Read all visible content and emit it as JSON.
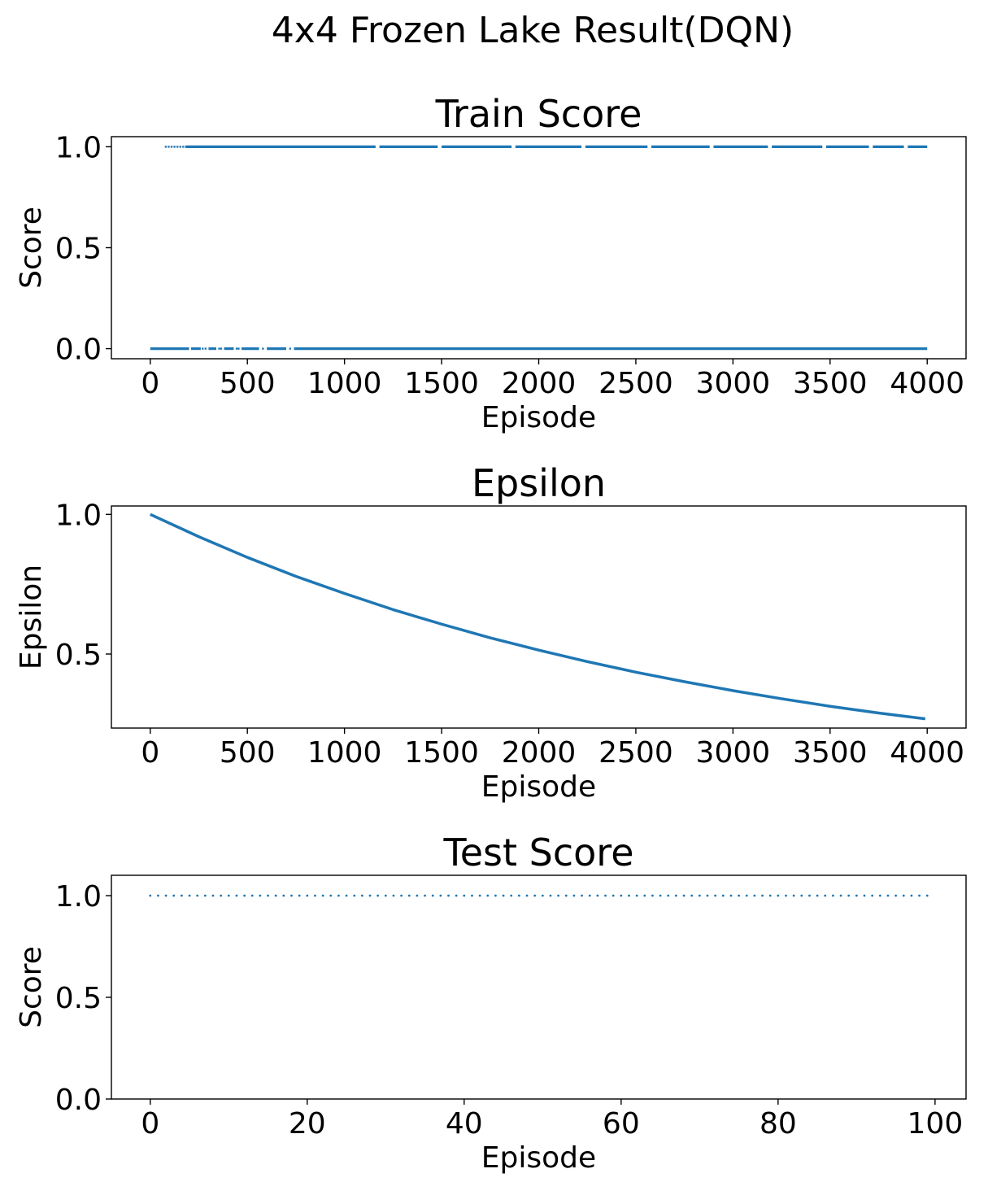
{
  "figure": {
    "suptitle": "4x4 Frozen Lake Result(DQN)"
  },
  "chart_data": [
    {
      "type": "scatter",
      "title": "Train Score",
      "xlabel": "Episode",
      "ylabel": "Score",
      "xlim": [
        -200,
        4200
      ],
      "ylim": [
        -0.05,
        1.05
      ],
      "xticks": [
        0,
        500,
        1000,
        1500,
        2000,
        2500,
        3000,
        3500,
        4000
      ],
      "yticks": [
        0.0,
        0.5,
        1.0
      ],
      "ytick_labels": [
        "0.0",
        "0.5",
        "1.0"
      ],
      "grid": false,
      "color": "#1f77b4",
      "series": [
        {
          "y": 1.0,
          "segments": [
            [
              180,
              1160
            ],
            [
              1180,
              1480
            ],
            [
              1500,
              1860
            ],
            [
              1880,
              2220
            ],
            [
              2240,
              2560
            ],
            [
              2580,
              2880
            ],
            [
              2900,
              3180
            ],
            [
              3200,
              3460
            ],
            [
              3480,
              3700
            ],
            [
              3720,
              3880
            ],
            [
              3900,
              4000
            ]
          ],
          "points": [
            80,
            95,
            110,
            125,
            140,
            155,
            170
          ]
        },
        {
          "y": 0.0,
          "segments": [
            [
              0,
              200
            ],
            [
              210,
              260
            ],
            [
              300,
              340
            ],
            [
              380,
              430
            ],
            [
              470,
              560
            ],
            [
              600,
              700
            ],
            [
              740,
              4000
            ]
          ],
          "points": [
            270,
            285,
            355,
            365,
            445,
            455,
            580,
            720
          ]
        }
      ]
    },
    {
      "type": "line",
      "title": "Epsilon",
      "xlabel": "Episode",
      "ylabel": "Epsilon",
      "xlim": [
        -200,
        4200
      ],
      "ylim": [
        0.235,
        1.03
      ],
      "xticks": [
        0,
        500,
        1000,
        1500,
        2000,
        2500,
        3000,
        3500,
        4000
      ],
      "yticks": [
        0.5,
        1.0
      ],
      "ytick_labels": [
        "0.5",
        "1.0"
      ],
      "grid": false,
      "color": "#1f77b4",
      "x": [
        0,
        250,
        500,
        750,
        1000,
        1250,
        1500,
        1750,
        2000,
        2250,
        2500,
        2750,
        3000,
        3250,
        3500,
        3750,
        3990
      ],
      "values": [
        1.0,
        0.92,
        0.846,
        0.778,
        0.717,
        0.659,
        0.607,
        0.558,
        0.514,
        0.473,
        0.435,
        0.401,
        0.369,
        0.34,
        0.313,
        0.289,
        0.268
      ]
    },
    {
      "type": "scatter",
      "title": "Test Score",
      "xlabel": "Episode",
      "ylabel": "Score",
      "xlim": [
        -4.95,
        103.95
      ],
      "ylim": [
        0.0,
        1.1
      ],
      "xticks": [
        0,
        20,
        40,
        60,
        80,
        100
      ],
      "yticks": [
        0.0,
        0.5,
        1.0
      ],
      "ytick_labels": [
        "0.0",
        "0.5",
        "1.0"
      ],
      "grid": false,
      "color": "#1f77b4",
      "series": [
        {
          "x_range": [
            0,
            99
          ],
          "y": 1.0
        }
      ]
    }
  ]
}
